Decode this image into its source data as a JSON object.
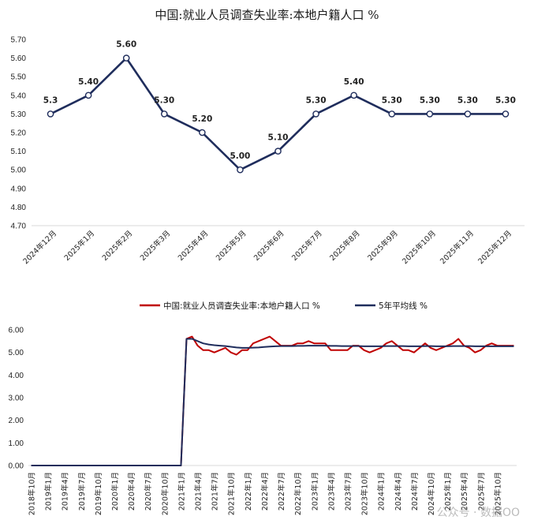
{
  "title": "中国:就业人员调查失业率:本地户籍人口 %",
  "colors": {
    "main_line": "#1F2D5C",
    "red_line": "#C00000",
    "navy_line": "#1F2D5C",
    "axis": "#D9D9D9"
  },
  "watermark": "公众号 · 数据OO",
  "chart_data": [
    {
      "type": "line",
      "title": "中国:就业人员调查失业率:本地户籍人口 %",
      "categories": [
        "2024年12月",
        "2025年1月",
        "2025年2月",
        "2025年3月",
        "2025年4月",
        "2025年5月",
        "2025年6月",
        "2025年7月",
        "2025年8月",
        "2025年9月",
        "2025年10月",
        "2025年11月",
        "2025年12月"
      ],
      "values": [
        5.3,
        5.4,
        5.6,
        5.3,
        5.2,
        5.0,
        5.1,
        5.3,
        5.4,
        5.3,
        5.3,
        5.3,
        5.3
      ],
      "data_labels": [
        "5.3",
        "5.40",
        "5.60",
        "5.30",
        "5.20",
        "5.00",
        "5.10",
        "5.30",
        "5.40",
        "5.30",
        "5.30",
        "5.30",
        "5.30"
      ],
      "y_ticks": [
        "5.70",
        "5.60",
        "5.50",
        "5.40",
        "5.30",
        "5.20",
        "5.10",
        "5.00",
        "4.90",
        "4.80",
        "4.70"
      ],
      "ylim": [
        4.7,
        5.7
      ],
      "grid": false,
      "markers": "hollow-circle"
    },
    {
      "type": "line",
      "legend_position": "top",
      "series": [
        {
          "name": "中国:就业人员调查失业率:本地户籍人口 %",
          "values": [
            0,
            0,
            0,
            0,
            0,
            0,
            0,
            0,
            0,
            0,
            0,
            0,
            0,
            0,
            0,
            0,
            0,
            0,
            0,
            0,
            0,
            0,
            0,
            0,
            0,
            0,
            0,
            0,
            5.6,
            5.7,
            5.3,
            5.1,
            5.1,
            5.0,
            5.1,
            5.2,
            5.0,
            4.9,
            5.1,
            5.1,
            5.4,
            5.5,
            5.6,
            5.7,
            5.5,
            5.3,
            5.3,
            5.3,
            5.4,
            5.4,
            5.5,
            5.4,
            5.4,
            5.4,
            5.1,
            5.1,
            5.1,
            5.1,
            5.3,
            5.3,
            5.1,
            5.0,
            5.1,
            5.2,
            5.4,
            5.5,
            5.3,
            5.1,
            5.1,
            5.0,
            5.2,
            5.4,
            5.2,
            5.1,
            5.2,
            5.3,
            5.4,
            5.6,
            5.3,
            5.2,
            5.0,
            5.1,
            5.3,
            5.4,
            5.3,
            5.3,
            5.3,
            5.3
          ]
        },
        {
          "name": "5年平均线 %",
          "values": [
            0,
            0,
            0,
            0,
            0,
            0,
            0,
            0,
            0,
            0,
            0,
            0,
            0,
            0,
            0,
            0,
            0,
            0,
            0,
            0,
            0,
            0,
            0,
            0,
            0,
            0,
            0,
            0,
            5.6,
            5.6,
            5.5,
            5.4,
            5.35,
            5.32,
            5.3,
            5.28,
            5.25,
            5.22,
            5.2,
            5.2,
            5.21,
            5.22,
            5.24,
            5.26,
            5.27,
            5.28,
            5.28,
            5.28,
            5.29,
            5.29,
            5.3,
            5.3,
            5.3,
            5.3,
            5.29,
            5.29,
            5.28,
            5.28,
            5.28,
            5.28,
            5.27,
            5.27,
            5.27,
            5.27,
            5.28,
            5.28,
            5.28,
            5.28,
            5.27,
            5.27,
            5.27,
            5.28,
            5.28,
            5.27,
            5.27,
            5.27,
            5.28,
            5.28,
            5.28,
            5.28,
            5.27,
            5.27,
            5.27,
            5.27,
            5.27,
            5.27,
            5.27,
            5.27
          ]
        }
      ],
      "x_ticks": [
        "2018年10月",
        "2019年1月",
        "2019年4月",
        "2019年7月",
        "2019年10月",
        "2020年1月",
        "2020年4月",
        "2020年7月",
        "2020年10月",
        "2021年1月",
        "2021年4月",
        "2021年7月",
        "2021年10月",
        "2022年1月",
        "2022年4月",
        "2022年7月",
        "2022年10月",
        "2023年1月",
        "2023年4月",
        "2023年7月",
        "2023年10月",
        "2024年1月",
        "2024年4月",
        "2024年7月",
        "2024年10月",
        "2025年1月",
        "2025年4月",
        "2025年7月",
        "2025年10月"
      ],
      "y_ticks": [
        "6.00",
        "5.00",
        "4.00",
        "3.00",
        "2.00",
        "1.00",
        "0.00"
      ],
      "ylim": [
        0,
        6
      ],
      "grid": false
    }
  ]
}
